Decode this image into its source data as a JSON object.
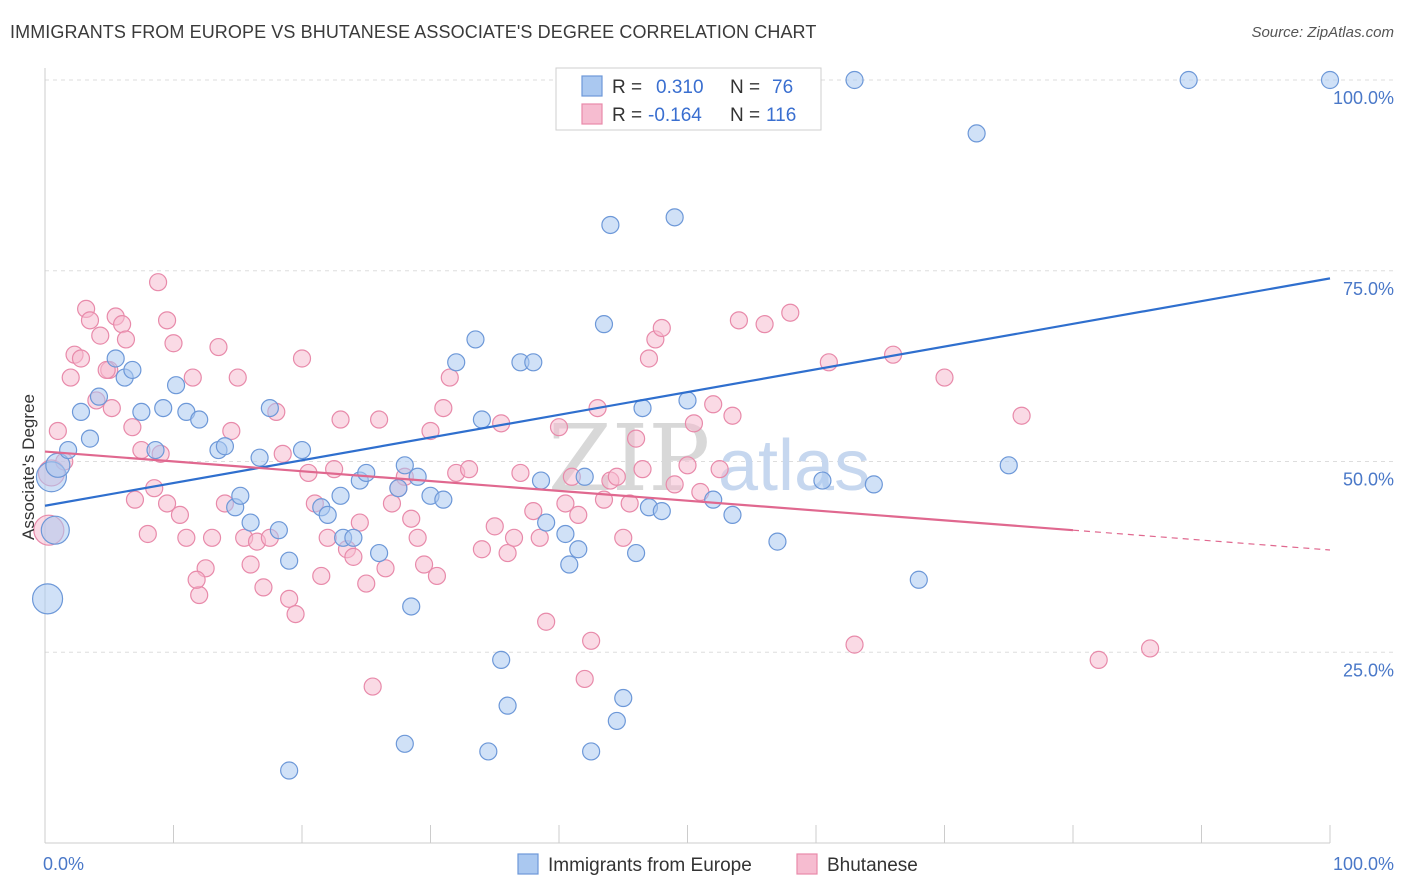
{
  "title": "IMMIGRANTS FROM EUROPE VS BHUTANESE ASSOCIATE'S DEGREE CORRELATION CHART",
  "source": "Source: ZipAtlas.com",
  "watermark": {
    "zip": "ZIP",
    "atlas": "atlas"
  },
  "legend_top": [
    {
      "r_label": "R =",
      "r_value": "0.310",
      "n_label": "N =",
      "n_value": "76"
    },
    {
      "r_label": "R =",
      "r_value": "-0.164",
      "n_label": "N =",
      "n_value": "116"
    }
  ],
  "legend_bottom": [
    "Immigrants from Europe",
    "Bhutanese"
  ],
  "colors": {
    "blue_fill": "#aac8f0",
    "blue_stroke": "#6d98d8",
    "blue_line": "#2f6fce",
    "pink_fill": "#f6bcd0",
    "pink_stroke": "#e88aaa",
    "pink_line": "#e0688f",
    "grid": "#dddddd",
    "tick_label": "#4a78c8"
  },
  "chart_data": {
    "type": "scatter",
    "title": "IMMIGRANTS FROM EUROPE VS BHUTANESE ASSOCIATE'S DEGREE CORRELATION CHART",
    "xlabel": "",
    "ylabel": "Associate's Degree",
    "xlim": [
      0,
      100
    ],
    "ylim": [
      0,
      100
    ],
    "x_tick_labels": [
      "0.0%",
      "100.0%"
    ],
    "y_tick_labels": [
      "25.0%",
      "50.0%",
      "75.0%",
      "100.0%"
    ],
    "y_ticks": [
      25,
      50,
      75,
      100
    ],
    "grid": "horizontal dashed",
    "legend": "top-center",
    "series": [
      {
        "name": "Immigrants from Europe",
        "r": 0.31,
        "n": 76,
        "trend": {
          "x": [
            0,
            100
          ],
          "y": [
            44.2,
            74.0
          ]
        },
        "points": [
          [
            0.5,
            48.0
          ],
          [
            0.2,
            32.0
          ],
          [
            0.8,
            41.0
          ],
          [
            1.0,
            49.5
          ],
          [
            1.8,
            51.5
          ],
          [
            3.5,
            53.0
          ],
          [
            2.8,
            56.5
          ],
          [
            4.2,
            58.5
          ],
          [
            5.5,
            63.5
          ],
          [
            6.2,
            61.0
          ],
          [
            6.8,
            62.0
          ],
          [
            7.5,
            56.5
          ],
          [
            8.6,
            51.5
          ],
          [
            9.2,
            57.0
          ],
          [
            10.2,
            60.0
          ],
          [
            11.0,
            56.5
          ],
          [
            12.0,
            55.5
          ],
          [
            13.5,
            51.5
          ],
          [
            14.0,
            52.0
          ],
          [
            14.8,
            44.0
          ],
          [
            15.2,
            45.5
          ],
          [
            16.0,
            42.0
          ],
          [
            16.7,
            50.5
          ],
          [
            17.5,
            57.0
          ],
          [
            18.2,
            41.0
          ],
          [
            19.0,
            37.0
          ],
          [
            20.0,
            51.5
          ],
          [
            21.5,
            44.0
          ],
          [
            22.0,
            43.0
          ],
          [
            23.0,
            45.5
          ],
          [
            23.2,
            40.0
          ],
          [
            24.0,
            40.0
          ],
          [
            24.5,
            47.5
          ],
          [
            25.0,
            48.5
          ],
          [
            26.0,
            38.0
          ],
          [
            27.5,
            46.5
          ],
          [
            28.0,
            49.5
          ],
          [
            28.5,
            31.0
          ],
          [
            29.0,
            48.0
          ],
          [
            30.0,
            45.5
          ],
          [
            31.0,
            45.0
          ],
          [
            32.0,
            63.0
          ],
          [
            33.5,
            66.0
          ],
          [
            34.0,
            55.5
          ],
          [
            35.5,
            24.0
          ],
          [
            36.0,
            18.0
          ],
          [
            37.0,
            63.0
          ],
          [
            38.0,
            63.0
          ],
          [
            38.6,
            47.5
          ],
          [
            39.0,
            42.0
          ],
          [
            40.5,
            40.5
          ],
          [
            40.8,
            36.5
          ],
          [
            41.5,
            38.5
          ],
          [
            42.0,
            48.0
          ],
          [
            43.5,
            68.0
          ],
          [
            44.0,
            81.0
          ],
          [
            42.5,
            12.0
          ],
          [
            44.5,
            16.0
          ],
          [
            45.0,
            19.0
          ],
          [
            46.0,
            38.0
          ],
          [
            46.5,
            57.0
          ],
          [
            47.0,
            44.0
          ],
          [
            48.0,
            43.5
          ],
          [
            49.0,
            82.0
          ],
          [
            50.0,
            58.0
          ],
          [
            52.0,
            45.0
          ],
          [
            53.5,
            43.0
          ],
          [
            57.0,
            39.5
          ],
          [
            60.5,
            47.5
          ],
          [
            64.5,
            47.0
          ],
          [
            68.0,
            34.5
          ],
          [
            72.5,
            93.0
          ],
          [
            75.0,
            49.5
          ],
          [
            89.0,
            100.0
          ],
          [
            100.0,
            100.0
          ],
          [
            42.0,
            100.0
          ],
          [
            63.0,
            100.0
          ],
          [
            28.0,
            13.0
          ],
          [
            34.5,
            12.0
          ],
          [
            19.0,
            9.5
          ]
        ]
      },
      {
        "name": "Bhutanese",
        "r": -0.164,
        "n": 116,
        "trend": {
          "x": [
            0,
            80
          ],
          "y": [
            51.3,
            41.0
          ]
        },
        "trend_dashed": {
          "x": [
            80,
            100
          ],
          "y": [
            41.0,
            38.4
          ]
        },
        "points": [
          [
            0.3,
            41.0
          ],
          [
            0.5,
            48.5
          ],
          [
            1.0,
            54.0
          ],
          [
            1.5,
            50.0
          ],
          [
            2.0,
            61.0
          ],
          [
            2.3,
            64.0
          ],
          [
            2.8,
            63.5
          ],
          [
            3.2,
            70.0
          ],
          [
            3.5,
            68.5
          ],
          [
            4.0,
            58.0
          ],
          [
            4.3,
            66.5
          ],
          [
            5.0,
            62.0
          ],
          [
            5.5,
            69.0
          ],
          [
            6.0,
            68.0
          ],
          [
            6.3,
            66.0
          ],
          [
            6.8,
            54.5
          ],
          [
            7.0,
            45.0
          ],
          [
            7.5,
            51.5
          ],
          [
            8.0,
            40.5
          ],
          [
            8.5,
            46.5
          ],
          [
            8.8,
            73.5
          ],
          [
            9.0,
            51.0
          ],
          [
            9.5,
            44.5
          ],
          [
            10.0,
            65.5
          ],
          [
            10.5,
            43.0
          ],
          [
            11.0,
            40.0
          ],
          [
            11.5,
            61.0
          ],
          [
            12.0,
            32.5
          ],
          [
            12.5,
            36.0
          ],
          [
            13.0,
            40.0
          ],
          [
            13.5,
            65.0
          ],
          [
            14.0,
            44.5
          ],
          [
            14.5,
            54.0
          ],
          [
            15.0,
            61.0
          ],
          [
            15.5,
            40.0
          ],
          [
            16.0,
            36.5
          ],
          [
            16.5,
            39.5
          ],
          [
            17.0,
            33.5
          ],
          [
            17.5,
            40.0
          ],
          [
            18.0,
            56.5
          ],
          [
            18.5,
            51.0
          ],
          [
            19.0,
            32.0
          ],
          [
            19.5,
            30.0
          ],
          [
            20.0,
            63.5
          ],
          [
            20.5,
            48.5
          ],
          [
            21.0,
            44.5
          ],
          [
            21.5,
            35.0
          ],
          [
            22.0,
            40.0
          ],
          [
            22.5,
            49.0
          ],
          [
            23.0,
            55.5
          ],
          [
            23.5,
            38.5
          ],
          [
            24.0,
            37.5
          ],
          [
            24.5,
            42.0
          ],
          [
            25.0,
            34.0
          ],
          [
            25.5,
            20.5
          ],
          [
            26.0,
            55.5
          ],
          [
            26.5,
            36.0
          ],
          [
            27.0,
            44.5
          ],
          [
            27.5,
            46.5
          ],
          [
            28.0,
            48.0
          ],
          [
            28.5,
            42.5
          ],
          [
            29.0,
            40.0
          ],
          [
            29.5,
            36.5
          ],
          [
            30.0,
            54.0
          ],
          [
            30.5,
            35.0
          ],
          [
            31.0,
            57.0
          ],
          [
            31.5,
            61.0
          ],
          [
            32.0,
            48.5
          ],
          [
            33.0,
            49.0
          ],
          [
            34.0,
            38.5
          ],
          [
            35.0,
            41.5
          ],
          [
            35.5,
            55.0
          ],
          [
            36.0,
            38.0
          ],
          [
            36.5,
            40.0
          ],
          [
            37.0,
            48.5
          ],
          [
            38.0,
            43.5
          ],
          [
            38.5,
            40.0
          ],
          [
            39.0,
            29.0
          ],
          [
            40.0,
            54.5
          ],
          [
            40.5,
            44.5
          ],
          [
            41.0,
            48.0
          ],
          [
            41.5,
            43.0
          ],
          [
            42.0,
            21.5
          ],
          [
            42.5,
            26.5
          ],
          [
            43.0,
            57.0
          ],
          [
            43.5,
            45.0
          ],
          [
            44.0,
            47.5
          ],
          [
            44.5,
            48.0
          ],
          [
            45.0,
            40.0
          ],
          [
            45.5,
            44.5
          ],
          [
            46.0,
            53.0
          ],
          [
            46.5,
            49.0
          ],
          [
            47.0,
            63.5
          ],
          [
            47.5,
            66.0
          ],
          [
            48.0,
            67.5
          ],
          [
            49.0,
            47.0
          ],
          [
            50.0,
            49.5
          ],
          [
            50.5,
            55.0
          ],
          [
            51.0,
            46.0
          ],
          [
            52.0,
            57.5
          ],
          [
            52.5,
            49.0
          ],
          [
            53.5,
            56.0
          ],
          [
            54.0,
            68.5
          ],
          [
            56.0,
            68.0
          ],
          [
            58.0,
            69.5
          ],
          [
            61.0,
            63.0
          ],
          [
            63.0,
            26.0
          ],
          [
            66.0,
            64.0
          ],
          [
            70.0,
            61.0
          ],
          [
            76.0,
            56.0
          ],
          [
            82.0,
            24.0
          ],
          [
            86.0,
            25.5
          ],
          [
            9.5,
            68.5
          ],
          [
            5.2,
            57.0
          ],
          [
            4.8,
            62.0
          ],
          [
            11.8,
            34.5
          ]
        ]
      }
    ]
  }
}
